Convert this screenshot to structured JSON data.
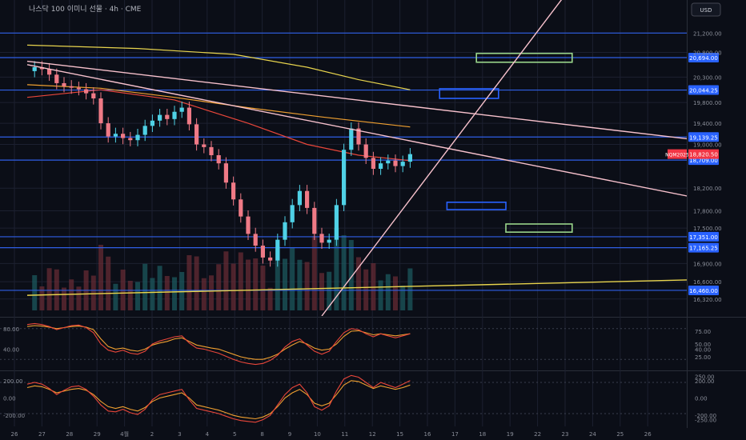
{
  "header": {
    "title": "나스닥 100 이미니 선물 · 4h · CME",
    "currency": "USD"
  },
  "colors": {
    "background": "#0b0e17",
    "grid": "#1c2030",
    "level_line": "#2f5fe6",
    "label_blue": "#2962ff",
    "label_red": "#f23645",
    "bull": "#4fd1e6",
    "bear": "#ef7a86",
    "pink": "#f7c1cc",
    "yellow": "#e8d44d",
    "orange": "#f0a030",
    "red_ma": "#e8463a",
    "green_box": "#9ad58a"
  },
  "chart_data": [
    {
      "type": "line",
      "name": "price",
      "y_scale": "log",
      "ylim": [
        16050,
        21900
      ],
      "x_ticks": [
        "26",
        "27",
        "28",
        "29",
        "4월",
        "2",
        "3",
        "4",
        "5",
        "8",
        "9",
        "10",
        "11",
        "12",
        "15",
        "16",
        "17",
        "18",
        "19",
        "22",
        "23",
        "24",
        "25",
        "26"
      ],
      "y_ticks": [
        "21,200.00",
        "20,800.00",
        "20,300.00",
        "19,800.00",
        "19,400.00",
        "19,000.00",
        "18,200.00",
        "17,800.00",
        "17,500.00",
        "16,900.00",
        "16,600.00",
        "16,320.00"
      ],
      "levels": [
        {
          "value": 21200,
          "label": ""
        },
        {
          "value": 20694,
          "label": "20,694.00"
        },
        {
          "value": 20044.25,
          "label": "20,044.25"
        },
        {
          "value": 19139.25,
          "label": "19,139.25"
        },
        {
          "value": 18709,
          "label": "18,709.00"
        },
        {
          "value": 17351,
          "label": "17,351.00"
        },
        {
          "value": 17165.25,
          "label": "17,165.25"
        },
        {
          "value": 16460,
          "label": "16,460.00"
        }
      ],
      "current_price": {
        "symbol": "NQM2025",
        "value": "18,820.50"
      },
      "close_path": [
        [
          0,
          20420
        ],
        [
          1,
          20500
        ],
        [
          2,
          20460
        ],
        [
          3,
          20350
        ],
        [
          4,
          20180
        ],
        [
          5,
          20120
        ],
        [
          6,
          20090
        ],
        [
          7,
          20060
        ],
        [
          8,
          19980
        ],
        [
          9,
          19880
        ],
        [
          10,
          19400
        ],
        [
          11,
          19150
        ],
        [
          12,
          19200
        ],
        [
          13,
          19120
        ],
        [
          14,
          19080
        ],
        [
          15,
          19180
        ],
        [
          16,
          19350
        ],
        [
          17,
          19450
        ],
        [
          18,
          19560
        ],
        [
          19,
          19480
        ],
        [
          20,
          19620
        ],
        [
          21,
          19700
        ],
        [
          22,
          19380
        ],
        [
          23,
          19000
        ],
        [
          24,
          18950
        ],
        [
          25,
          18800
        ],
        [
          26,
          18650
        ],
        [
          27,
          18300
        ],
        [
          28,
          18000
        ],
        [
          29,
          17700
        ],
        [
          30,
          17400
        ],
        [
          31,
          17200
        ],
        [
          32,
          17000
        ],
        [
          33,
          16950
        ],
        [
          34,
          17300
        ],
        [
          35,
          17600
        ],
        [
          36,
          17900
        ],
        [
          37,
          18150
        ],
        [
          38,
          17850
        ],
        [
          39,
          17400
        ],
        [
          40,
          17250
        ],
        [
          41,
          17300
        ],
        [
          42,
          17900
        ],
        [
          43,
          18900
        ],
        [
          44,
          19300
        ],
        [
          45,
          19000
        ],
        [
          46,
          18750
        ],
        [
          47,
          18550
        ],
        [
          48,
          18650
        ],
        [
          49,
          18700
        ],
        [
          50,
          18600
        ],
        [
          51,
          18680
        ],
        [
          52,
          18820
        ]
      ],
      "boxes": [
        {
          "i1": 61,
          "i2": 74,
          "y1": 20780,
          "y2": 20600,
          "color": "green"
        },
        {
          "i1": 56,
          "i2": 64,
          "y1": 20070,
          "y2": 19880,
          "color": "blue"
        },
        {
          "i1": 57,
          "i2": 65,
          "y1": 17950,
          "y2": 17820,
          "color": "blue"
        },
        {
          "i1": 65,
          "i2": 74,
          "y1": 17570,
          "y2": 17430,
          "color": "green"
        }
      ],
      "trendlines": [
        {
          "i1": 0,
          "y1": 20620,
          "i2": 90,
          "y2": 19100,
          "color": "pink"
        },
        {
          "i1": 0,
          "y1": 20550,
          "i2": 90,
          "y2": 18050,
          "color": "pink"
        },
        {
          "i1": 40,
          "y1": 16050,
          "i2": 73,
          "y2": 22000,
          "color": "pink"
        },
        {
          "i1": 0,
          "y1": 16380,
          "i2": 90,
          "y2": 16630,
          "color": "yellow"
        }
      ],
      "moving_averages": [
        {
          "color": "yellow",
          "points": [
            [
              0,
              20950
            ],
            [
              15,
              20880
            ],
            [
              28,
              20760
            ],
            [
              38,
              20500
            ],
            [
              45,
              20250
            ],
            [
              52,
              20050
            ]
          ]
        },
        {
          "color": "orange",
          "points": [
            [
              0,
              20150
            ],
            [
              10,
              20080
            ],
            [
              20,
              19900
            ],
            [
              30,
              19700
            ],
            [
              40,
              19520
            ],
            [
              52,
              19330
            ]
          ]
        },
        {
          "color": "red",
          "points": [
            [
              0,
              19900
            ],
            [
              10,
              20050
            ],
            [
              20,
              19850
            ],
            [
              30,
              19400
            ],
            [
              38,
              19000
            ],
            [
              45,
              18800
            ],
            [
              52,
              18700
            ]
          ]
        }
      ]
    },
    {
      "type": "line",
      "name": "oscillator-1",
      "ylim": [
        0,
        100
      ],
      "left_ticks": [
        "80.00",
        "40.00"
      ],
      "right_ticks": [
        "75.00",
        "50.00",
        "40.00",
        "25.00"
      ],
      "series": [
        {
          "color": "orange",
          "values": [
            84,
            86,
            85,
            83,
            80,
            82,
            84,
            85,
            83,
            78,
            60,
            45,
            40,
            42,
            38,
            36,
            40,
            48,
            52,
            55,
            60,
            62,
            55,
            48,
            45,
            42,
            40,
            35,
            30,
            25,
            22,
            20,
            20,
            24,
            30,
            40,
            48,
            55,
            50,
            42,
            38,
            40,
            50,
            65,
            75,
            76,
            72,
            68,
            70,
            68,
            66,
            68,
            70
          ]
        },
        {
          "color": "red",
          "values": [
            88,
            90,
            88,
            84,
            78,
            82,
            86,
            87,
            82,
            72,
            50,
            38,
            34,
            38,
            32,
            30,
            36,
            50,
            56,
            60,
            64,
            66,
            52,
            42,
            40,
            36,
            32,
            26,
            20,
            15,
            12,
            10,
            12,
            18,
            28,
            44,
            55,
            60,
            48,
            36,
            30,
            36,
            55,
            72,
            80,
            78,
            70,
            64,
            70,
            66,
            62,
            66,
            70
          ]
        }
      ]
    },
    {
      "type": "line",
      "name": "oscillator-2",
      "ylim": [
        -300,
        300
      ],
      "left_ticks": [
        "200.00",
        "0.00",
        "-200.00"
      ],
      "right_ticks": [
        "250.00",
        "200.00",
        "0.00",
        "-200.00",
        "-250.00"
      ],
      "series": [
        {
          "color": "orange",
          "values": [
            120,
            140,
            130,
            100,
            60,
            80,
            100,
            110,
            90,
            40,
            -40,
            -100,
            -120,
            -100,
            -130,
            -150,
            -110,
            -40,
            0,
            20,
            40,
            60,
            0,
            -80,
            -100,
            -120,
            -140,
            -170,
            -200,
            -220,
            -230,
            -240,
            -220,
            -180,
            -100,
            0,
            60,
            100,
            40,
            -60,
            -90,
            -60,
            40,
            150,
            200,
            190,
            150,
            110,
            140,
            120,
            100,
            120,
            150
          ]
        },
        {
          "color": "red",
          "values": [
            160,
            180,
            160,
            110,
            40,
            90,
            130,
            140,
            100,
            20,
            -80,
            -150,
            -160,
            -130,
            -170,
            -190,
            -130,
            -20,
            40,
            60,
            80,
            100,
            -20,
            -120,
            -140,
            -160,
            -180,
            -210,
            -240,
            -260,
            -270,
            -280,
            -250,
            -200,
            -80,
            40,
            120,
            160,
            60,
            -100,
            -140,
            -90,
            80,
            220,
            260,
            240,
            180,
            120,
            180,
            150,
            120,
            160,
            200
          ]
        }
      ]
    }
  ]
}
